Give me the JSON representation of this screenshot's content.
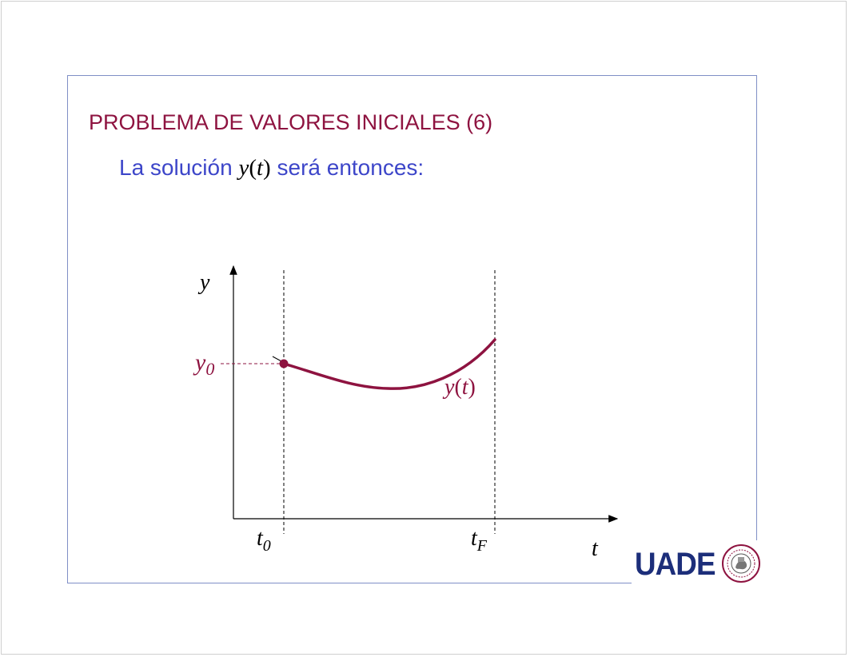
{
  "slide": {
    "title": "PROBLEMA DE VALORES INICIALES (6)",
    "subtitle_before": "La solución ",
    "subtitle_math_fn": "y",
    "subtitle_math_paren_open": "(",
    "subtitle_math_var": "t",
    "subtitle_math_paren_close": ")",
    "subtitle_after": " será entonces:"
  },
  "figure": {
    "y_axis_label": "y",
    "t_axis_label": "t",
    "y0_base": "y",
    "y0_sub": "0",
    "t0_base": "t",
    "t0_sub": "0",
    "tF_base": "t",
    "tF_sub": "F",
    "curve_label_fn": "y",
    "curve_label_open": "(",
    "curve_label_var": "t",
    "curve_label_close": ")"
  },
  "colors": {
    "title": "#8e1340",
    "subtitle": "#3d46c9",
    "curve": "#8e1340",
    "frame": "#7f8fc6",
    "logo": "#1c2e7a"
  },
  "logo": {
    "text": "UADE",
    "seal_icon": "university-seal-icon"
  }
}
